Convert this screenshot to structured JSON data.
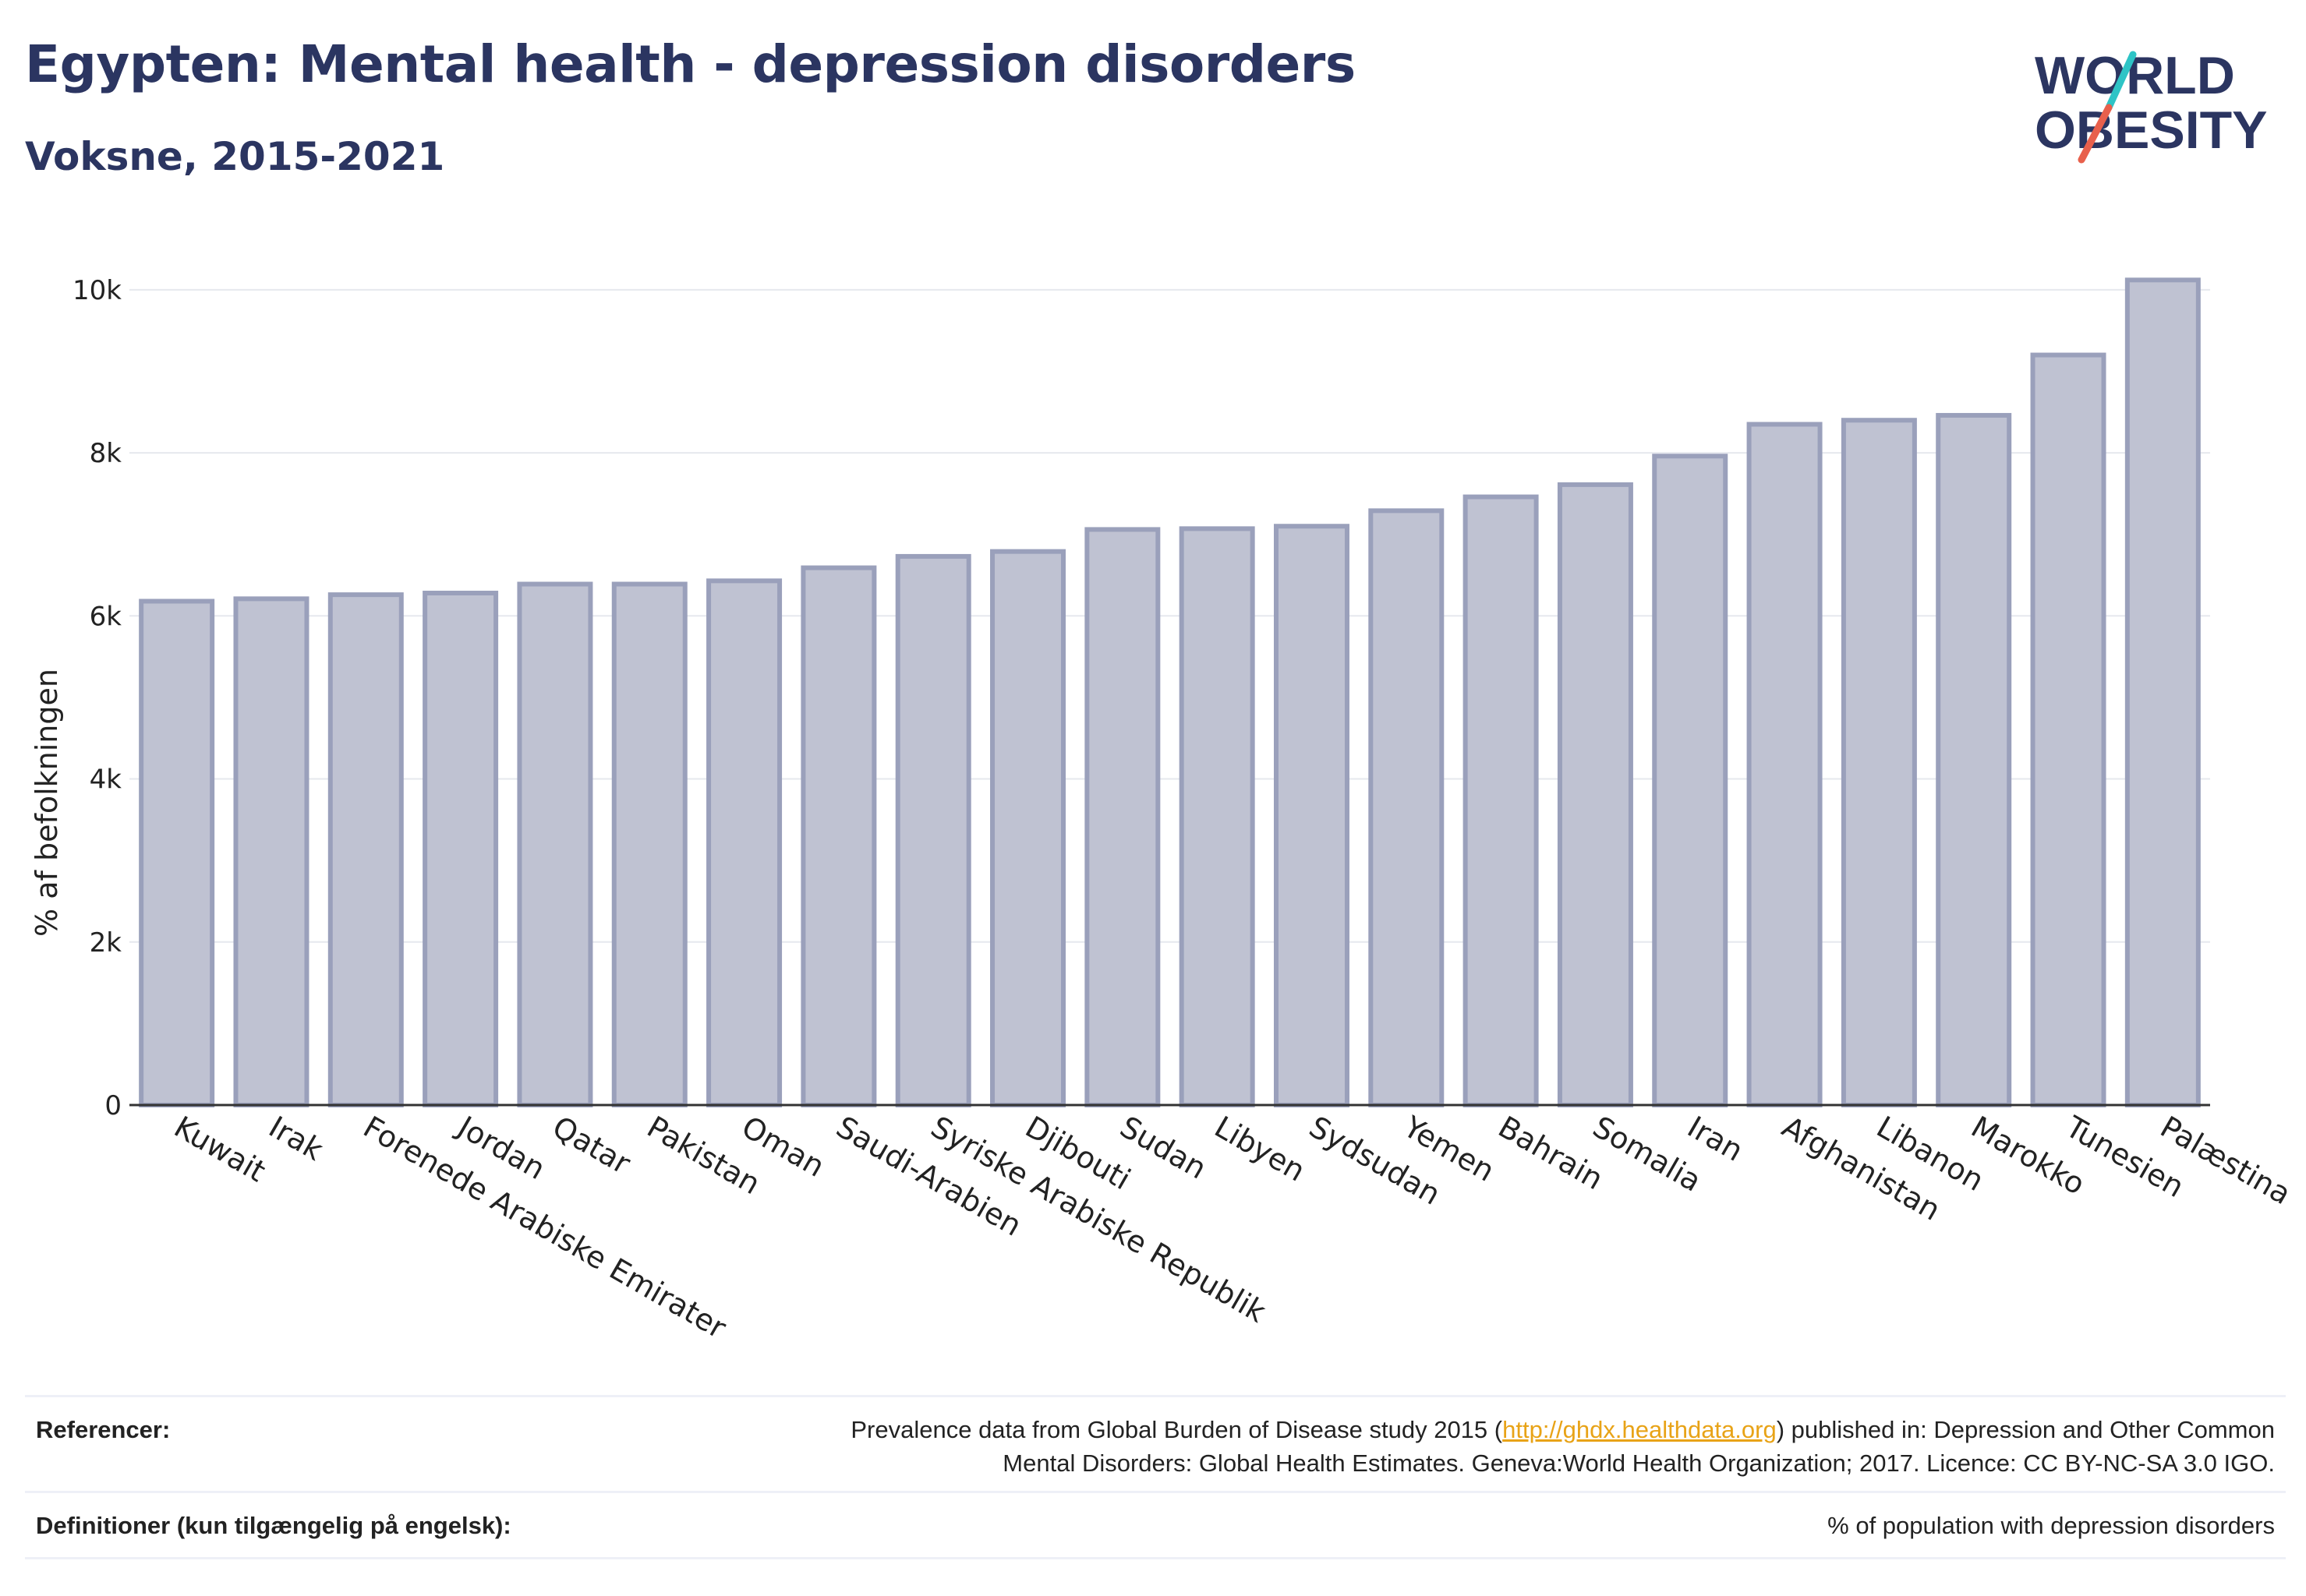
{
  "header": {
    "title": "Egypten: Mental health - depression disorders",
    "subtitle": "Voksne, 2015-2021"
  },
  "logo": {
    "line1": "WORLD",
    "line2": "OBESITY",
    "colors": {
      "text": "#2b3561",
      "slash_teal": "#2ec4c6",
      "slash_red": "#e8604c"
    }
  },
  "colors": {
    "bar_fill": "#bfc2d2",
    "bar_stroke": "#9aa0bb",
    "grid": "#e6e8ee",
    "axis": "#333333"
  },
  "chart_data": {
    "type": "bar",
    "ylabel": "% af befolkningen",
    "ylim": [
      0,
      10400
    ],
    "yticks": [
      0,
      2000,
      4000,
      6000,
      8000,
      10000
    ],
    "ytick_labels": [
      "0",
      "2k",
      "4k",
      "6k",
      "8k",
      "10k"
    ],
    "grid": true,
    "categories": [
      "Kuwait",
      "Irak",
      "Forenede Arabiske Emirater",
      "Jordan",
      "Qatar",
      "Pakistan",
      "Oman",
      "Saudi-Arabien",
      "Syriske Arabiske Republik",
      "Djibouti",
      "Sudan",
      "Libyen",
      "Sydsudan",
      "Yemen",
      "Bahrain",
      "Somalia",
      "Iran",
      "Afghanistan",
      "Libanon",
      "Marokko",
      "Tunesien",
      "Palæstina"
    ],
    "values": [
      6180,
      6210,
      6260,
      6280,
      6390,
      6390,
      6430,
      6590,
      6730,
      6790,
      7060,
      7070,
      7100,
      7290,
      7460,
      7610,
      7960,
      8350,
      8400,
      8460,
      9200,
      10120
    ]
  },
  "footer": {
    "references_label": "Referencer:",
    "references_text_1": "Prevalence data from Global Burden of Disease study 2015 (",
    "references_link": "http://ghdx.healthdata.org",
    "references_text_2": ") published in: Depression and Other Common",
    "references_text_3": "Mental Disorders: Global Health Estimates. Geneva:World Health Organization; 2017. Licence: CC BY-NC-SA 3.0 IGO.",
    "definitions_label": "Definitioner (kun tilgængelig på engelsk):",
    "definitions_text": "% of population with depression disorders"
  }
}
